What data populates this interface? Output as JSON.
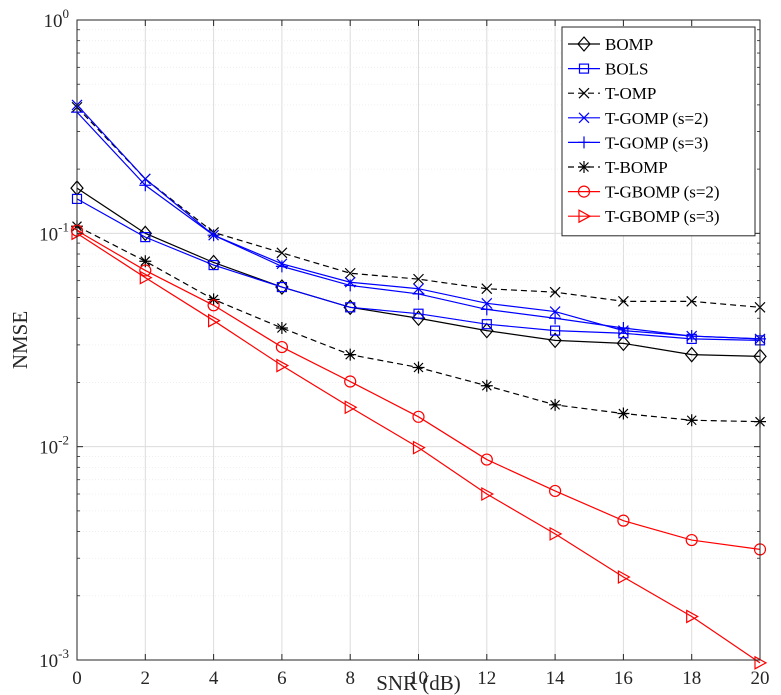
{
  "chart_data": {
    "type": "line",
    "title": "",
    "xlabel": "SNR (dB)",
    "ylabel": "NMSE",
    "yscale": "log",
    "xlim": [
      0,
      20
    ],
    "ylim": [
      0.001,
      1
    ],
    "grid": true,
    "legend_position": "top-right",
    "x": [
      0,
      2,
      4,
      6,
      8,
      10,
      12,
      14,
      16,
      18,
      20
    ],
    "x_ticks": [
      "0",
      "2",
      "4",
      "6",
      "8",
      "10",
      "12",
      "14",
      "16",
      "18",
      "20"
    ],
    "y_ticks": [
      {
        "value": 1,
        "base": "10",
        "exp": "0"
      },
      {
        "value": 0.1,
        "base": "10",
        "exp": "-1"
      },
      {
        "value": 0.01,
        "base": "10",
        "exp": "-2"
      },
      {
        "value": 0.001,
        "base": "10",
        "exp": "-3"
      }
    ],
    "series": [
      {
        "name": "BOMP",
        "color": "#000000",
        "dash": "solid",
        "marker": "diamond",
        "values": [
          0.163,
          0.1,
          0.073,
          0.056,
          0.045,
          0.04,
          0.035,
          0.0315,
          0.0305,
          0.027,
          0.0265
        ]
      },
      {
        "name": "BOLS",
        "color": "#0000ff",
        "dash": "solid",
        "marker": "square",
        "values": [
          0.145,
          0.096,
          0.071,
          0.056,
          0.045,
          0.042,
          0.0375,
          0.035,
          0.034,
          0.032,
          0.0315
        ]
      },
      {
        "name": "T-OMP",
        "color": "#000000",
        "dash": "dashed",
        "marker": "x",
        "values": [
          0.39,
          0.18,
          0.101,
          0.081,
          0.065,
          0.061,
          0.055,
          0.053,
          0.048,
          0.048,
          0.045
        ]
      },
      {
        "name": "T-GOMP (s=2)",
        "color": "#0000ff",
        "dash": "solid",
        "marker": "x",
        "values": [
          0.4,
          0.18,
          0.098,
          0.072,
          0.059,
          0.055,
          0.047,
          0.043,
          0.035,
          0.033,
          0.032
        ]
      },
      {
        "name": "T-GOMP (s=3)",
        "color": "#0000ff",
        "dash": "solid",
        "marker": "plus",
        "values": [
          0.37,
          0.168,
          0.098,
          0.07,
          0.057,
          0.052,
          0.044,
          0.04,
          0.036,
          0.033,
          0.032
        ]
      },
      {
        "name": "T-BOMP",
        "color": "#000000",
        "dash": "dashed",
        "marker": "star",
        "values": [
          0.108,
          0.074,
          0.049,
          0.036,
          0.027,
          0.0235,
          0.0193,
          0.0157,
          0.0143,
          0.0133,
          0.0131
        ]
      },
      {
        "name": "T-GBOMP (s=2)",
        "color": "#ff0000",
        "dash": "solid",
        "marker": "circle",
        "values": [
          0.103,
          0.067,
          0.046,
          0.0293,
          0.0202,
          0.0138,
          0.0087,
          0.0062,
          0.0045,
          0.00365,
          0.0033
        ]
      },
      {
        "name": "T-GBOMP (s=3)",
        "color": "#ff0000",
        "dash": "solid",
        "marker": "triangle-right",
        "values": [
          0.1,
          0.062,
          0.039,
          0.024,
          0.0153,
          0.0099,
          0.006,
          0.0039,
          0.00245,
          0.0016,
          0.00097
        ]
      }
    ]
  }
}
